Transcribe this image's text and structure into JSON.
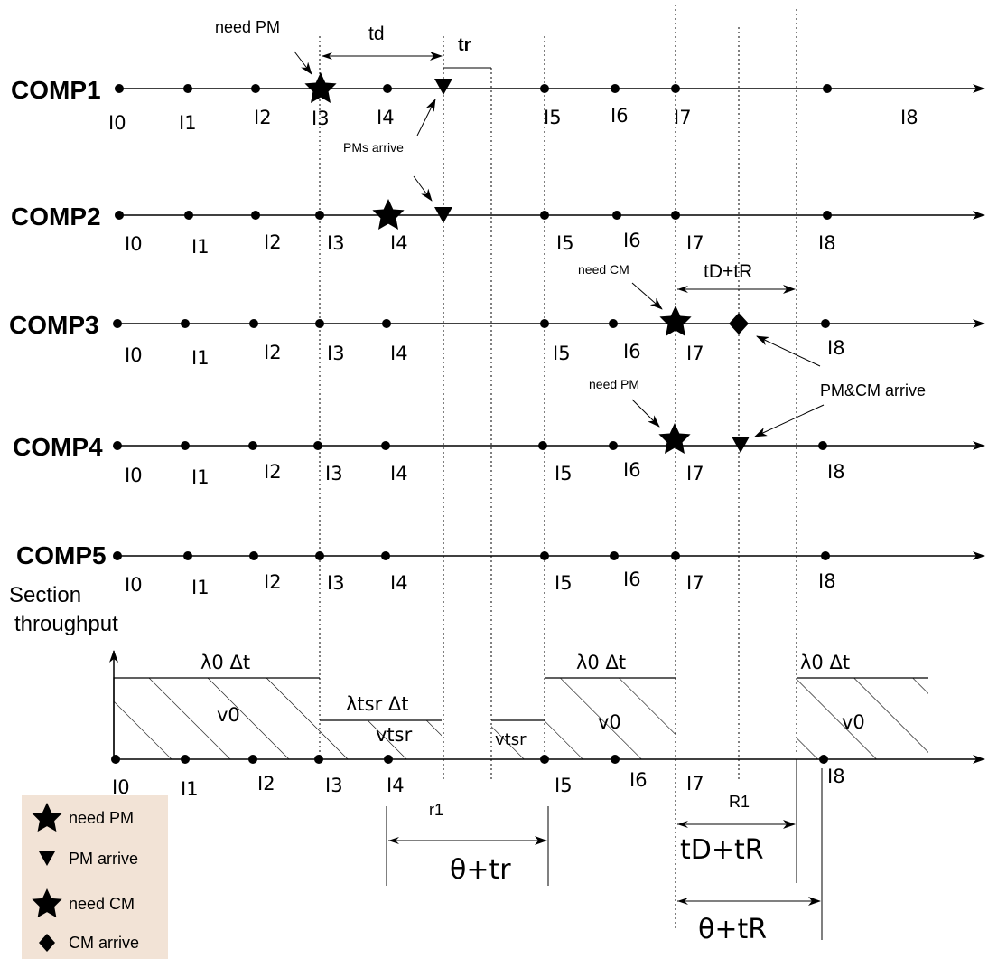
{
  "components": [
    "COMP1",
    "COMP2",
    "COMP3",
    "COMP4",
    "COMP5"
  ],
  "intervals": [
    "I0",
    "I1",
    "I2",
    "I3",
    "I4",
    "I5",
    "I6",
    "I7",
    "I8"
  ],
  "annotations": {
    "need_pm_top": "need PM",
    "td": "td",
    "tr": "tr",
    "pms_arrive": "PMs arrive",
    "need_cm": "need CM",
    "td_tr_upper": "tD+tR",
    "need_pm_comp4": "need PM",
    "pm_cm_arrive": "PM&CM arrive"
  },
  "throughput": {
    "section_label": "Section",
    "throughput_label": "throughput",
    "lambda0": "λ0 Δt",
    "lambda_tsr": "λtsr Δt",
    "v0": "v0",
    "vtsr": "vtsr"
  },
  "bottom": {
    "r1": "r1",
    "R1": "R1",
    "theta_tr": "θ+tr",
    "td_tR": "tD+tR",
    "theta_tR": "θ+tR"
  },
  "legend": [
    {
      "icon": "star-icon",
      "label": "need PM"
    },
    {
      "icon": "triangle-down-icon",
      "label": "PM arrive"
    },
    {
      "icon": "star-icon",
      "label": "need CM"
    },
    {
      "icon": "diamond-icon",
      "label": "CM arrive"
    }
  ]
}
